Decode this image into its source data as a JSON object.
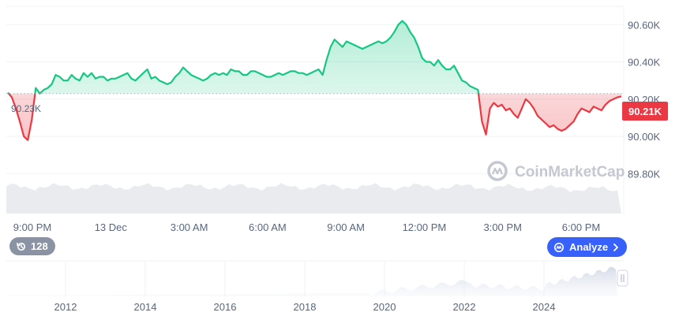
{
  "chart_data": [
    {
      "type": "line",
      "baseline": 90230,
      "baseline_label": "90.23K",
      "last_label": "90.21K",
      "ylim": [
        89700,
        90690
      ],
      "y_ticks": [
        89800,
        90000,
        90200,
        90400,
        90600
      ],
      "y_tick_labels": [
        "89.80K",
        "90.00K",
        "90.20K",
        "90.40K",
        "90.60K"
      ],
      "x_tick_labels": [
        "9:00 PM",
        "13 Dec",
        "3:00 AM",
        "6:00 AM",
        "9:00 AM",
        "12:00 PM",
        "3:00 PM",
        "6:00 PM"
      ],
      "series": [
        {
          "values": [
            90235,
            90210,
            90150,
            90080,
            90000,
            89980,
            90090,
            90260,
            90230,
            90250,
            90260,
            90280,
            90330,
            90320,
            90300,
            90300,
            90330,
            90310,
            90300,
            90340,
            90320,
            90340,
            90310,
            90320,
            90320,
            90300,
            90310,
            90310,
            90320,
            90330,
            90340,
            90310,
            90300,
            90320,
            90340,
            90360,
            90310,
            90320,
            90300,
            90290,
            90280,
            90290,
            90320,
            90340,
            90370,
            90350,
            90330,
            90320,
            90310,
            90300,
            90310,
            90330,
            90340,
            90330,
            90340,
            90330,
            90360,
            90350,
            90350,
            90330,
            90330,
            90350,
            90350,
            90340,
            90330,
            90320,
            90320,
            90330,
            90340,
            90330,
            90340,
            90350,
            90350,
            90340,
            90340,
            90330,
            90340,
            90350,
            90360,
            90330,
            90410,
            90480,
            90520,
            90500,
            90480,
            90510,
            90500,
            90490,
            90480,
            90470,
            90480,
            90490,
            90500,
            90510,
            90500,
            90510,
            90530,
            90560,
            90600,
            90620,
            90600,
            90560,
            90530,
            90480,
            90420,
            90400,
            90400,
            90380,
            90410,
            90380,
            90360,
            90360,
            90380,
            90340,
            90300,
            90290,
            90270,
            90260,
            90250,
            90080,
            90010,
            90150,
            90180,
            90160,
            90170,
            90140,
            90150,
            90120,
            90100,
            90150,
            90200,
            90180,
            90150,
            90110,
            90090,
            90070,
            90050,
            90060,
            90040,
            90030,
            90040,
            90060,
            90080,
            90120,
            90150,
            90140,
            90130,
            90160,
            90150,
            90140,
            90170,
            90190,
            90200,
            90210,
            90215
          ]
        }
      ]
    },
    {
      "type": "area",
      "x_tick_labels": [
        "2012",
        "2014",
        "2016",
        "2018",
        "2020",
        "2022",
        "2024"
      ]
    }
  ],
  "watermark": "CoinMarketCap",
  "buttons": {
    "history_count": "128",
    "analyze_label": "Analyze"
  },
  "icons": {
    "history": "history-icon",
    "analyze": "coinmarketcap-logo-icon",
    "chevron": "chevron-right-icon",
    "brush_handle": "drag-handle-icon"
  },
  "colors": {
    "up": "#16c784",
    "down": "#ea3943",
    "axis_text": "#58667e",
    "analyze_bg": "#3861fb",
    "history_bg": "#8a93a3"
  }
}
